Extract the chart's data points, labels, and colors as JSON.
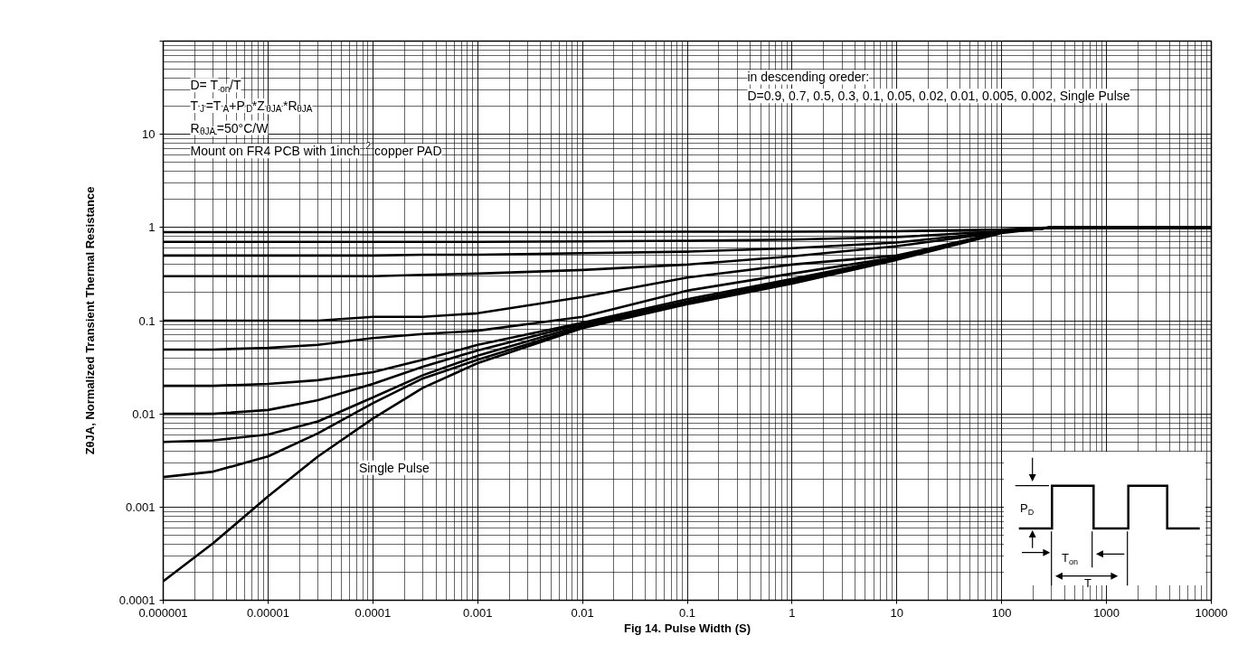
{
  "chart_data": {
    "type": "line",
    "xlabel": "Fig 14. Pulse Width (S)",
    "ylabel": "ZθJA, Normalized Transient Thermal Resistance",
    "x": [
      1e-06,
      3e-06,
      1e-05,
      3e-05,
      0.0001,
      0.0003,
      0.001,
      0.01,
      0.1,
      1,
      10,
      100,
      300,
      10000
    ],
    "series": [
      {
        "color": "#000000",
        "values": [
          0.89,
          0.89,
          0.89,
          0.89,
          0.89,
          0.89,
          0.89,
          0.89,
          0.9,
          0.9,
          0.91,
          0.95,
          1,
          1
        ]
      },
      {
        "color": "#000000",
        "values": [
          0.7,
          0.7,
          0.7,
          0.7,
          0.7,
          0.7,
          0.7,
          0.71,
          0.72,
          0.74,
          0.79,
          0.91,
          1,
          1
        ]
      },
      {
        "color": "#000000",
        "values": [
          0.5,
          0.5,
          0.5,
          0.5,
          0.5,
          0.51,
          0.51,
          0.53,
          0.55,
          0.6,
          0.69,
          0.9,
          1,
          1
        ]
      },
      {
        "color": "#000000",
        "values": [
          0.3,
          0.3,
          0.3,
          0.3,
          0.3,
          0.31,
          0.32,
          0.35,
          0.4,
          0.49,
          0.63,
          0.89,
          1,
          1
        ]
      },
      {
        "color": "#000000",
        "values": [
          0.1,
          0.1,
          0.1,
          0.1,
          0.11,
          0.11,
          0.12,
          0.18,
          0.29,
          0.4,
          0.5,
          0.89,
          1,
          1
        ]
      },
      {
        "color": "#000000",
        "values": [
          0.049,
          0.049,
          0.051,
          0.055,
          0.065,
          0.072,
          0.078,
          0.11,
          0.21,
          0.32,
          0.48,
          0.89,
          1,
          1
        ]
      },
      {
        "color": "#000000",
        "values": [
          0.02,
          0.02,
          0.021,
          0.023,
          0.028,
          0.038,
          0.055,
          0.095,
          0.17,
          0.28,
          0.47,
          0.89,
          1,
          1
        ]
      },
      {
        "color": "#000000",
        "values": [
          0.01,
          0.01,
          0.011,
          0.014,
          0.021,
          0.032,
          0.048,
          0.093,
          0.16,
          0.27,
          0.47,
          0.89,
          1,
          1
        ]
      },
      {
        "color": "#000000",
        "values": [
          0.005,
          0.0052,
          0.006,
          0.0083,
          0.015,
          0.026,
          0.042,
          0.089,
          0.16,
          0.26,
          0.47,
          0.89,
          1,
          1
        ]
      },
      {
        "color": "#000000",
        "values": [
          0.0021,
          0.0024,
          0.0035,
          0.0062,
          0.013,
          0.024,
          0.038,
          0.085,
          0.155,
          0.26,
          0.46,
          0.89,
          1,
          1
        ]
      },
      {
        "color": "#000000",
        "values": [
          0.00016,
          0.00041,
          0.0013,
          0.0035,
          0.0089,
          0.019,
          0.035,
          0.083,
          0.15,
          0.25,
          0.45,
          0.87,
          1,
          1
        ]
      }
    ],
    "log": "xy",
    "grid": true,
    "line_style": "solid",
    "xlim": [
      1e-06,
      10000
    ],
    "ylim": [
      0.0001,
      100
    ],
    "xticks": [
      {
        "value": 1e-06,
        "label": "0.000001"
      },
      {
        "value": 1e-05,
        "label": "0.00001"
      },
      {
        "value": 0.0001,
        "label": "0.0001"
      },
      0.001,
      0.01,
      0.1,
      1,
      10,
      100,
      1000,
      10000
    ],
    "yticks": [
      {
        "value": 0.0001,
        "label": "0.0001"
      },
      0.001,
      0.01,
      0.1,
      1,
      10,
      {
        "value": 100,
        "label": null
      }
    ],
    "annotations": [
      "D= T$_{on}$/T",
      "T$_{J}$=T$_{A}$+P$_{D}$*Z$_{θJA}$*R$_{θJA}$",
      "R$_{θJA}$=50°C/W",
      "Mount on FR4 PCB with 1inch$^{2}$ copper PAD",
      "in descending oreder:",
      "D=0.9, 0.7, 0.5, 0.3, 0.1, 0.05, 0.02, 0.01, 0.005, 0.002, Single Pulse",
      "Single Pulse",
      "P$_{D}$",
      "T$_{on}$",
      "T"
    ]
  }
}
